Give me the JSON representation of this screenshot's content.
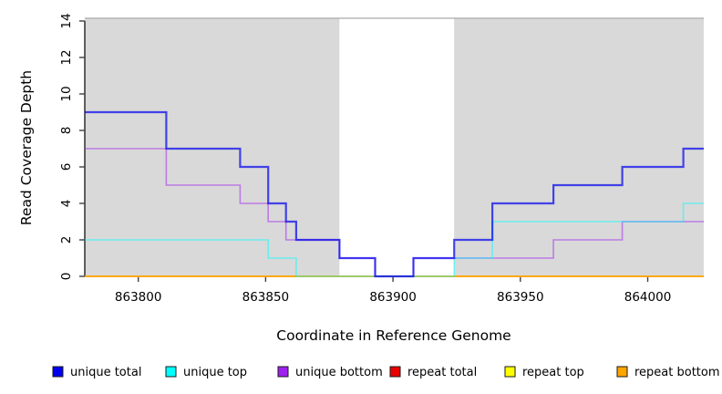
{
  "chart_data": {
    "type": "line",
    "subtype": "step",
    "title": "",
    "xlabel": "Coordinate in Reference Genome",
    "ylabel": "Read Coverage Depth",
    "xlim": [
      863779,
      864022
    ],
    "ylim": [
      0,
      14
    ],
    "xticks": [
      863800,
      863850,
      863900,
      863950,
      864000
    ],
    "yticks": [
      0,
      2,
      4,
      6,
      8,
      10,
      12,
      14
    ],
    "grid": false,
    "legend_position": "bottom",
    "plot_background_regions": [
      {
        "from": 863779,
        "to": 863879,
        "color": "#D9D9D9"
      },
      {
        "from": 863879,
        "to": 863924,
        "color": "#FFFFFF"
      },
      {
        "from": 863924,
        "to": 864022,
        "color": "#D9D9D9"
      }
    ],
    "top_border_color": "#ABABAB",
    "axis_color": "#000000",
    "tick_color": "#404040",
    "series": [
      {
        "name": "unique total",
        "color": "#0000EE",
        "width": 2.2,
        "opacity": 0.7,
        "steps": [
          [
            863779,
            9
          ],
          [
            863811,
            7
          ],
          [
            863840,
            6
          ],
          [
            863851,
            4
          ],
          [
            863858,
            3
          ],
          [
            863862,
            2
          ],
          [
            863879,
            1
          ],
          [
            863893,
            0
          ],
          [
            863908,
            1
          ],
          [
            863924,
            2
          ],
          [
            863939,
            4
          ],
          [
            863963,
            5
          ],
          [
            863990,
            6
          ],
          [
            864014,
            7
          ],
          [
            864022,
            7
          ]
        ]
      },
      {
        "name": "unique top",
        "color": "#00FFFF",
        "width": 1.6,
        "opacity": 0.5,
        "steps": [
          [
            863779,
            2
          ],
          [
            863851,
            1
          ],
          [
            863862,
            0
          ],
          [
            863924,
            1
          ],
          [
            863939,
            3
          ],
          [
            864014,
            4
          ],
          [
            864022,
            4
          ]
        ]
      },
      {
        "name": "unique bottom",
        "color": "#A020F0",
        "width": 1.6,
        "opacity": 0.5,
        "steps": [
          [
            863779,
            7
          ],
          [
            863811,
            5
          ],
          [
            863840,
            4
          ],
          [
            863851,
            3
          ],
          [
            863858,
            2
          ],
          [
            863879,
            1
          ],
          [
            863893,
            0
          ],
          [
            863908,
            1
          ],
          [
            863963,
            2
          ],
          [
            863990,
            3
          ],
          [
            864022,
            3
          ]
        ]
      },
      {
        "name": "repeat total",
        "color": "#E60000",
        "width": 1.6,
        "opacity": 0.5,
        "steps": [
          [
            863779,
            0
          ],
          [
            864022,
            0
          ]
        ]
      },
      {
        "name": "repeat top",
        "color": "#FFFF00",
        "width": 1.6,
        "opacity": 0.5,
        "steps": [
          [
            863779,
            0
          ],
          [
            864022,
            0
          ]
        ]
      },
      {
        "name": "repeat bottom",
        "color": "#FFA500",
        "width": 2.0,
        "opacity": 0.85,
        "steps": [
          [
            863779,
            0
          ],
          [
            864022,
            0
          ]
        ]
      }
    ],
    "draw_order": [
      "repeat total",
      "repeat top",
      "repeat bottom",
      "unique bottom",
      "unique top",
      "unique total"
    ],
    "legend": [
      {
        "label": "unique total",
        "color": "#0000EE"
      },
      {
        "label": "unique top",
        "color": "#00FFFF"
      },
      {
        "label": "unique bottom",
        "color": "#A020F0"
      },
      {
        "label": "repeat total",
        "color": "#E60000"
      },
      {
        "label": "repeat top",
        "color": "#FFFF00"
      },
      {
        "label": "repeat bottom",
        "color": "#FFA500"
      }
    ]
  }
}
